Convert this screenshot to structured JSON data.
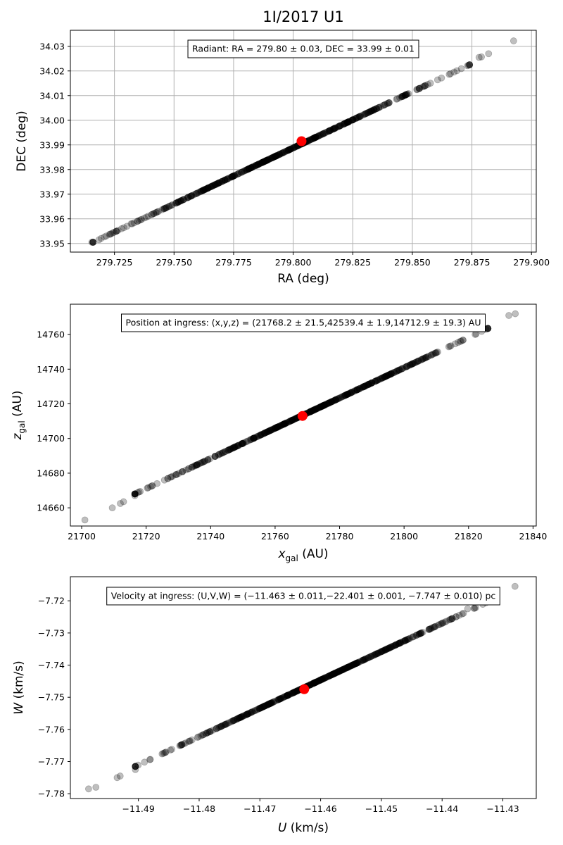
{
  "figure": {
    "title": "1I/2017 U1"
  },
  "chart_data": [
    {
      "type": "scatter",
      "xlabel": "RA (deg)",
      "ylabel": "DEC (deg)",
      "xlim": [
        279.7065,
        279.902
      ],
      "ylim": [
        33.9465,
        34.0365
      ],
      "xticks": [
        279.725,
        279.75,
        279.775,
        279.8,
        279.825,
        279.85,
        279.875,
        279.9
      ],
      "xtick_labels": [
        "279.725",
        "279.750",
        "279.775",
        "279.800",
        "279.825",
        "279.850",
        "279.875",
        "279.900"
      ],
      "yticks": [
        33.95,
        33.96,
        33.97,
        33.98,
        33.99,
        34.0,
        34.01,
        34.02,
        34.03
      ],
      "ytick_labels": [
        "33.95",
        "33.96",
        "33.97",
        "33.98",
        "33.99",
        "34.00",
        "34.01",
        "34.02",
        "34.03"
      ],
      "grid": true,
      "annotation": "Radiant: RA = 279.80 ± 0.03, DEC = 33.99 ± 0.01",
      "line": {
        "x": [
          279.716,
          279.874
        ],
        "y": [
          33.9505,
          34.0225
        ]
      },
      "outliers": [
        {
          "x": 279.7155,
          "y": 33.9505
        },
        {
          "x": 279.7185,
          "y": 33.9515
        },
        {
          "x": 279.7265,
          "y": 33.9553
        },
        {
          "x": 279.728,
          "y": 33.956
        },
        {
          "x": 279.732,
          "y": 33.958
        },
        {
          "x": 279.736,
          "y": 33.9596
        },
        {
          "x": 279.878,
          "y": 34.0255
        },
        {
          "x": 279.879,
          "y": 34.0257
        },
        {
          "x": 279.882,
          "y": 34.027
        },
        {
          "x": 279.8925,
          "y": 34.0322
        }
      ],
      "best_fit": {
        "x": 279.8035,
        "y": 33.9915
      },
      "colors": {
        "points": "#000000",
        "best_fit": "#ff0000",
        "grid": "#b0b0b0"
      }
    },
    {
      "type": "scatter",
      "xlabel": "x_gal (AU)",
      "ylabel": "z_gal (AU)",
      "xlim": [
        21696.5,
        21841.0
      ],
      "ylim": [
        14649.5,
        14777.5
      ],
      "xticks": [
        21700,
        21720,
        21740,
        21760,
        21780,
        21800,
        21820,
        21840
      ],
      "xtick_labels": [
        "21700",
        "21720",
        "21740",
        "21760",
        "21780",
        "21800",
        "21820",
        "21840"
      ],
      "yticks": [
        14660,
        14680,
        14700,
        14720,
        14740,
        14760
      ],
      "ytick_labels": [
        "14660",
        "14680",
        "14700",
        "14720",
        "14740",
        "14760"
      ],
      "grid": false,
      "annotation": "Position at ingress: (x,y,z) = (21768.2 ± 21.5,42539.4 ± 1.9,14712.9 ± 19.3) AU",
      "line": {
        "x": [
          21716.5,
          21826.0
        ],
        "y": [
          14668.0,
          14763.5
        ]
      },
      "outliers": [
        {
          "x": 21701,
          "y": 14653
        },
        {
          "x": 21709.5,
          "y": 14660
        },
        {
          "x": 21712,
          "y": 14662.5
        },
        {
          "x": 21713,
          "y": 14663.5
        },
        {
          "x": 21716.5,
          "y": 14667
        },
        {
          "x": 21832.5,
          "y": 14771
        },
        {
          "x": 21834.5,
          "y": 14772
        }
      ],
      "best_fit": {
        "x": 21768.5,
        "y": 14713.0
      },
      "colors": {
        "points": "#000000",
        "best_fit": "#ff0000"
      }
    },
    {
      "type": "scatter",
      "xlabel": "U (km/s)",
      "ylabel": "W (km/s)",
      "xlim": [
        -11.5012,
        -11.4245
      ],
      "ylim": [
        -7.7815,
        -7.7125
      ],
      "xticks": [
        -11.49,
        -11.48,
        -11.47,
        -11.46,
        -11.45,
        -11.44,
        -11.43
      ],
      "xtick_labels": [
        "−11.49",
        "−11.48",
        "−11.47",
        "−11.46",
        "−11.45",
        "−11.44",
        "−11.43"
      ],
      "yticks": [
        -7.78,
        -7.77,
        -7.76,
        -7.75,
        -7.74,
        -7.73,
        -7.72
      ],
      "ytick_labels": [
        "−7.78",
        "−7.77",
        "−7.76",
        "−7.75",
        "−7.74",
        "−7.73",
        "−7.72"
      ],
      "grid": false,
      "annotation": "Velocity at ingress: (U,V,W) = (−11.463 ± 0.011,−22.401 ± 0.001, −7.747 ± 0.010) pc",
      "line": {
        "x": [
          -11.4905,
          -11.4315
        ],
        "y": [
          -7.7715,
          -7.7195
        ]
      },
      "outliers": [
        {
          "x": -11.4982,
          "y": -7.7785
        },
        {
          "x": -11.497,
          "y": -7.778
        },
        {
          "x": -11.4935,
          "y": -7.775
        },
        {
          "x": -11.493,
          "y": -7.7745
        },
        {
          "x": -11.4905,
          "y": -7.7725
        },
        {
          "x": -11.4358,
          "y": -7.7225
        },
        {
          "x": -11.428,
          "y": -7.7155
        }
      ],
      "best_fit": {
        "x": -11.4627,
        "y": -7.7475
      },
      "colors": {
        "points": "#000000",
        "best_fit": "#ff0000"
      }
    }
  ]
}
